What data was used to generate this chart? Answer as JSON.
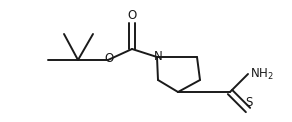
{
  "bg_color": "#ffffff",
  "line_color": "#1a1a1a",
  "line_width": 1.4,
  "font_size": 8.5,
  "figsize": [
    2.92,
    1.22
  ],
  "dpi": 100,
  "xlim": [
    0,
    292
  ],
  "ylim": [
    0,
    122
  ]
}
